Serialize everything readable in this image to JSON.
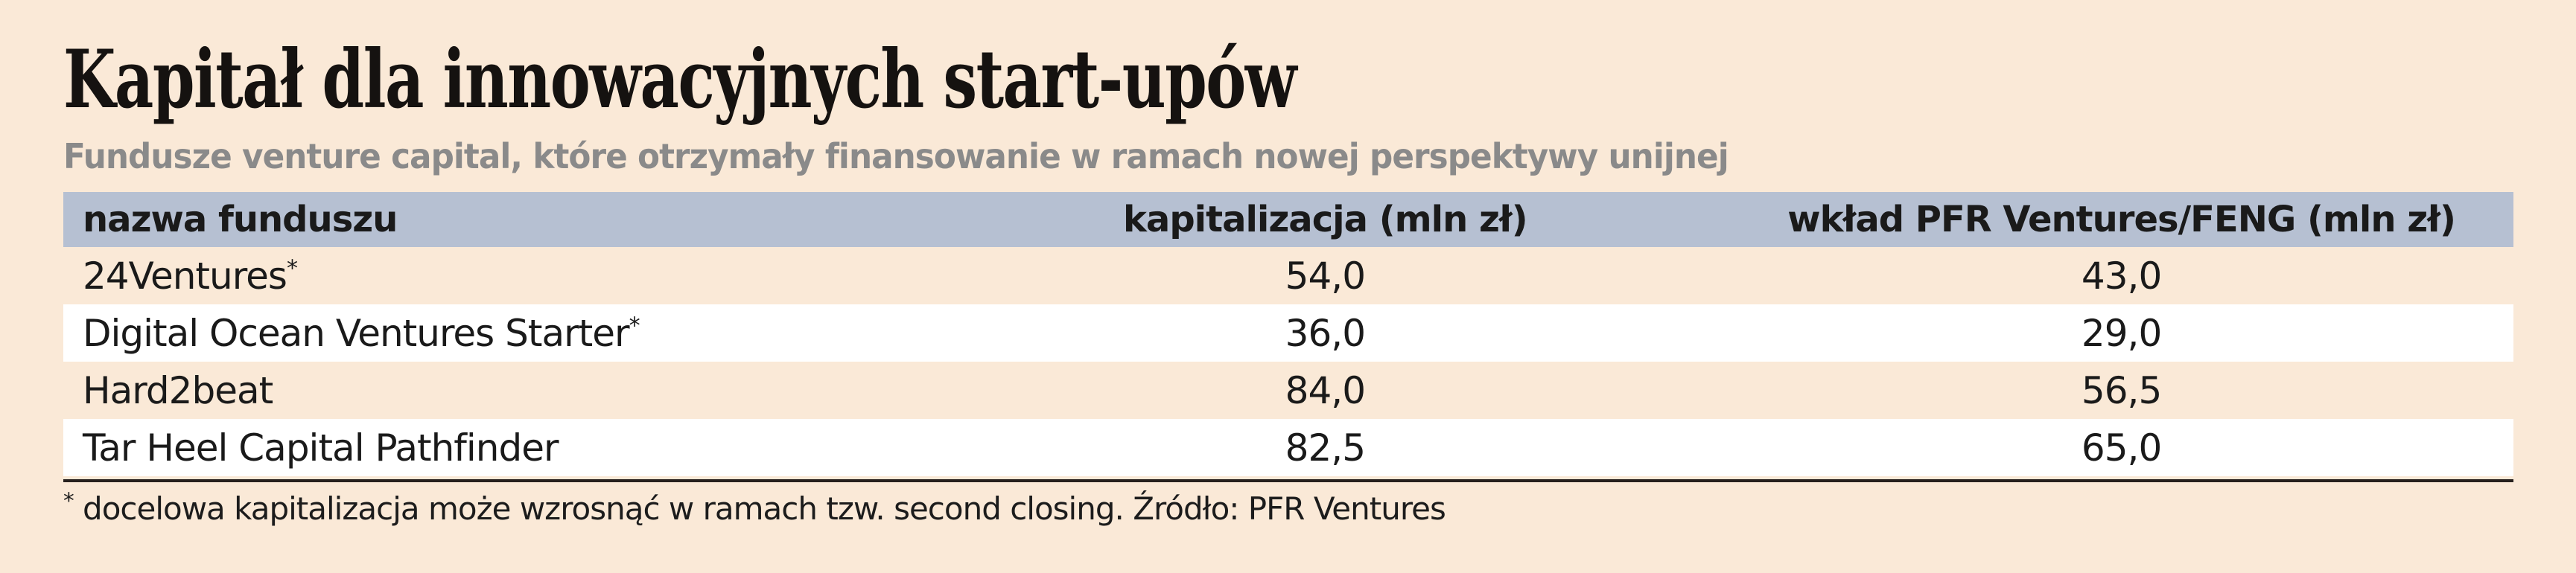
{
  "page": {
    "title": "Kapitał dla innowacyjnych start-upów",
    "subtitle": "Fundusze venture capital, które otrzymały finansowanie w ramach nowej perspektywy unijnej"
  },
  "colors": {
    "background": "#fae9d7",
    "header_row_background": "#b6c0d2",
    "alt_row_background": "#ffffff",
    "title_text": "#151210",
    "subtitle_text": "#8a8a8a",
    "body_text": "#1a1a1a",
    "bottom_rule": "#26201d"
  },
  "table": {
    "columns": [
      "nazwa funduszu",
      "kapitalizacja (mln zł)",
      "wkład PFR Ventures/FENG (mln zł)"
    ],
    "rows": [
      {
        "name": "24Ventures",
        "suffix": "*",
        "capitalization": "54,0",
        "contribution": "43,0"
      },
      {
        "name": "Digital Ocean Ventures Starter",
        "suffix": "*",
        "capitalization": "36,0",
        "contribution": "29,0"
      },
      {
        "name": "Hard2beat",
        "suffix": "",
        "capitalization": "84,0",
        "contribution": "56,5"
      },
      {
        "name": "Tar Heel Capital Pathfinder",
        "suffix": "",
        "capitalization": "82,5",
        "contribution": "65,0"
      }
    ]
  },
  "footnote": {
    "marker": "*",
    "text": " docelowa kapitalizacja może wzrosnąć w ramach tzw. second closing. Źródło: PFR Ventures"
  },
  "chart_data": {
    "type": "table",
    "title": "Kapitał dla innowacyjnych start-upów",
    "subtitle": "Fundusze venture capital, które otrzymały finansowanie w ramach nowej perspektywy unijnej",
    "columns": [
      "nazwa funduszu",
      "kapitalizacja (mln zł)",
      "wkład PFR Ventures/FENG (mln zł)"
    ],
    "rows": [
      [
        "24Ventures*",
        54.0,
        43.0
      ],
      [
        "Digital Ocean Ventures Starter*",
        36.0,
        29.0
      ],
      [
        "Hard2beat",
        84.0,
        56.5
      ],
      [
        "Tar Heel Capital Pathfinder",
        82.5,
        65.0
      ]
    ],
    "value_unit": "mln zł",
    "decimal_separator": ",",
    "footnote": "* docelowa kapitalizacja może wzrosnąć w ramach tzw. second closing. Źródło: PFR Ventures"
  }
}
